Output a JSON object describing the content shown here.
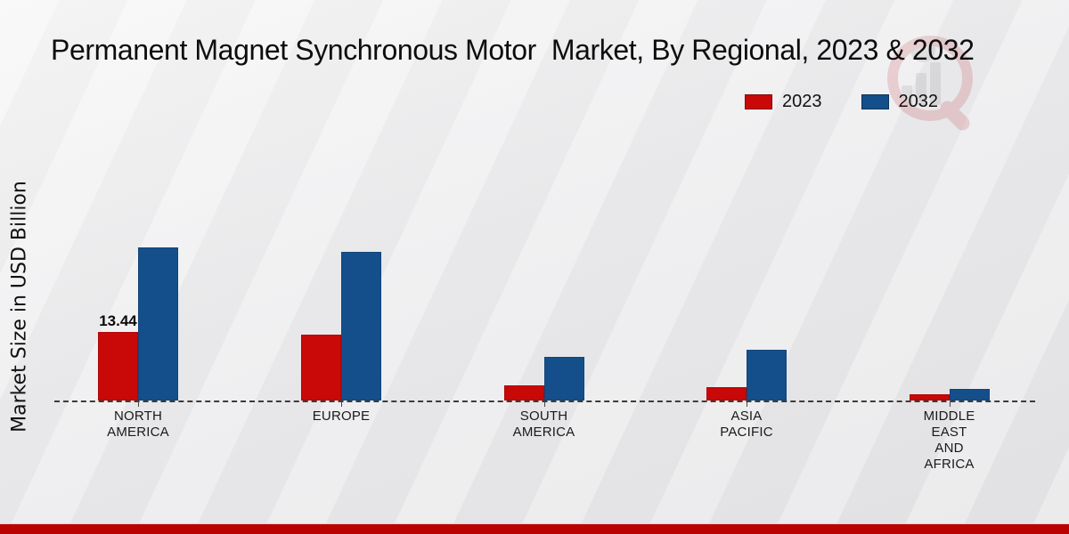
{
  "title": "Permanent Magnet Synchronous Motor  Market, By Regional, 2023 & 2032",
  "y_axis_label": "Market Size in USD Billion",
  "legend": {
    "position": "top-right",
    "items": [
      {
        "label": "2023",
        "color": "#c90808"
      },
      {
        "label": "2032",
        "color": "#144f8b"
      }
    ]
  },
  "colors": {
    "series_2023": "#c90808",
    "series_2032": "#144f8b",
    "footer_bar": "#bb0202",
    "baseline": "#3c3c3c",
    "background": "#eaeaec"
  },
  "watermark_icon": "magnifier-bar-chart-logo",
  "chart_data": {
    "type": "bar",
    "title": "Permanent Magnet Synchronous Motor  Market, By Regional, 2023 & 2032",
    "xlabel": "",
    "ylabel": "Market Size in USD Billion",
    "ylim": [
      0,
      32
    ],
    "grid": false,
    "legend_position": "top-right",
    "baseline_style": "dashed",
    "categories": [
      "NORTH AMERICA",
      "EUROPE",
      "SOUTH AMERICA",
      "ASIA PACIFIC",
      "MIDDLE EAST AND AFRICA"
    ],
    "category_label_lines": [
      [
        "NORTH",
        "AMERICA"
      ],
      [
        "EUROPE"
      ],
      [
        "SOUTH",
        "AMERICA"
      ],
      [
        "ASIA",
        "PACIFIC"
      ],
      [
        "MIDDLE",
        "EAST",
        "AND",
        "AFRICA"
      ]
    ],
    "series": [
      {
        "name": "2023",
        "color": "#c90808",
        "values": [
          13.44,
          12.9,
          3.0,
          2.6,
          1.2
        ]
      },
      {
        "name": "2032",
        "color": "#144f8b",
        "values": [
          30.0,
          29.1,
          8.6,
          9.9,
          2.3
        ]
      }
    ],
    "data_labels": [
      {
        "series_index": 0,
        "category_index": 0,
        "text": "13.44"
      }
    ]
  }
}
